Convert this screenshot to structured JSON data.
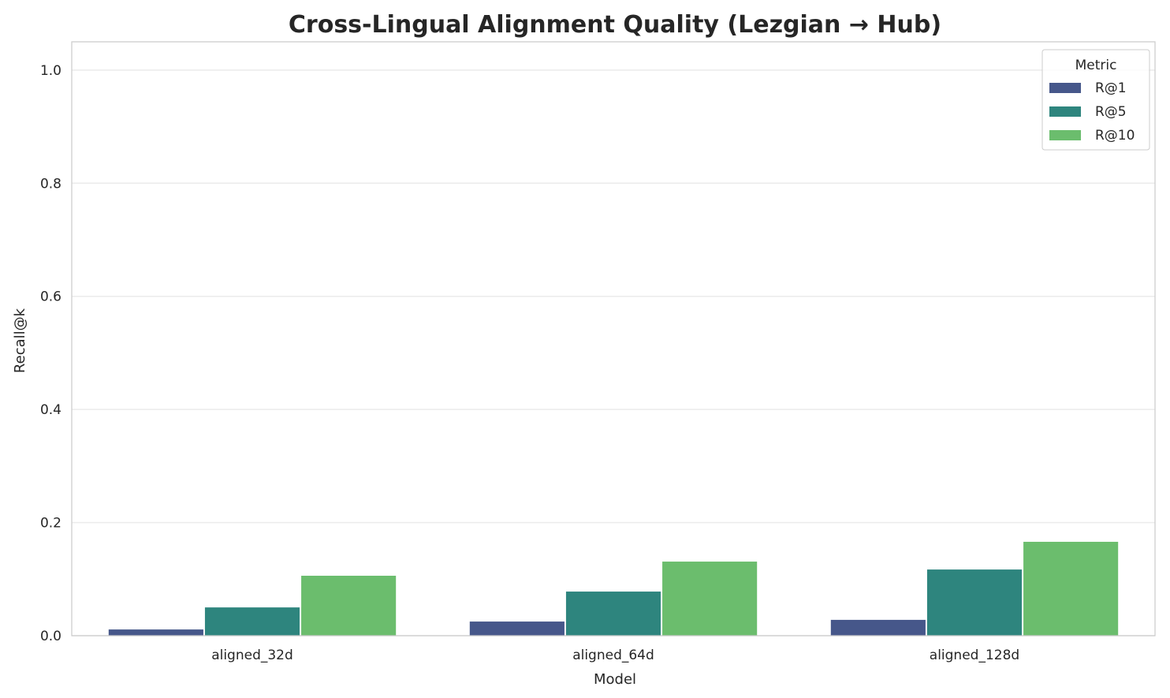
{
  "chart_data": {
    "type": "bar",
    "title": "Cross-Lingual Alignment Quality (Lezgian → Hub)",
    "xlabel": "Model",
    "ylabel": "Recall@k",
    "categories": [
      "aligned_32d",
      "aligned_64d",
      "aligned_128d"
    ],
    "series": [
      {
        "name": "R@1",
        "color": "#46578a",
        "values": [
          0.011,
          0.025,
          0.028
        ]
      },
      {
        "name": "R@5",
        "color": "#2e857e",
        "values": [
          0.05,
          0.078,
          0.117
        ]
      },
      {
        "name": "R@10",
        "color": "#6bbd6d",
        "values": [
          0.106,
          0.131,
          0.166
        ]
      }
    ],
    "ylim": [
      0,
      1.05
    ],
    "yticks": [
      "0.0",
      "0.2",
      "0.4",
      "0.6",
      "0.8",
      "1.0"
    ],
    "grid": true,
    "legend": {
      "title": "Metric",
      "placement": "top-right"
    }
  }
}
